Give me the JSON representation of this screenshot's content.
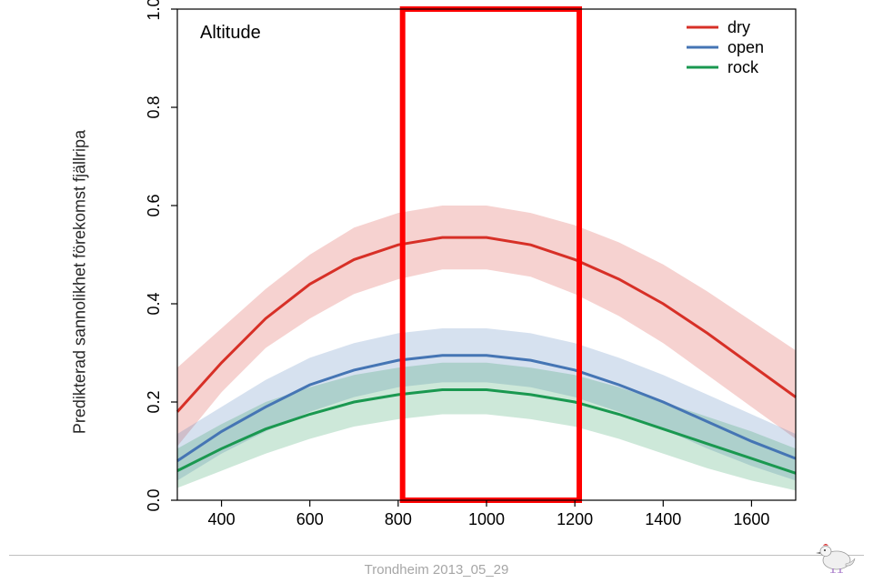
{
  "chart": {
    "type": "line",
    "title_inside": "Altitude",
    "title_fontsize": 20,
    "title_color": "#000000",
    "background_color": "#ffffff",
    "plot_border_color": "#000000",
    "axis_text_color": "#000000",
    "tick_fontsize": 18,
    "xlim": [
      300,
      1700
    ],
    "xticks": [
      400,
      600,
      800,
      1000,
      1200,
      1400,
      1600
    ],
    "ylim": [
      0.0,
      1.0
    ],
    "yticks": [
      0.0,
      0.2,
      0.4,
      0.6,
      0.8,
      1.0
    ],
    "y_tick_labels": [
      "0.0",
      "0.2",
      "0.4",
      "0.6",
      "0.8",
      "1.0"
    ],
    "series": [
      {
        "name": "dry",
        "color": "#d73027",
        "ribbon_color": "#d73027",
        "ribbon_opacity": 0.22,
        "line_width": 3,
        "x": [
          300,
          400,
          500,
          600,
          700,
          800,
          900,
          1000,
          1100,
          1200,
          1300,
          1400,
          1500,
          1600,
          1700
        ],
        "y": [
          0.18,
          0.28,
          0.37,
          0.44,
          0.49,
          0.52,
          0.535,
          0.535,
          0.52,
          0.49,
          0.45,
          0.4,
          0.34,
          0.275,
          0.21
        ],
        "lo": [
          0.11,
          0.22,
          0.31,
          0.37,
          0.42,
          0.45,
          0.47,
          0.47,
          0.455,
          0.42,
          0.375,
          0.32,
          0.255,
          0.19,
          0.125
        ],
        "hi": [
          0.27,
          0.35,
          0.43,
          0.5,
          0.555,
          0.585,
          0.6,
          0.6,
          0.585,
          0.56,
          0.525,
          0.48,
          0.425,
          0.365,
          0.305
        ]
      },
      {
        "name": "open",
        "color": "#4575b4",
        "ribbon_color": "#4575b4",
        "ribbon_opacity": 0.22,
        "line_width": 3,
        "x": [
          300,
          400,
          500,
          600,
          700,
          800,
          900,
          1000,
          1100,
          1200,
          1300,
          1400,
          1500,
          1600,
          1700
        ],
        "y": [
          0.08,
          0.14,
          0.19,
          0.235,
          0.265,
          0.285,
          0.295,
          0.295,
          0.285,
          0.265,
          0.235,
          0.2,
          0.16,
          0.12,
          0.085
        ],
        "lo": [
          0.04,
          0.095,
          0.14,
          0.18,
          0.21,
          0.23,
          0.24,
          0.24,
          0.23,
          0.21,
          0.18,
          0.145,
          0.105,
          0.07,
          0.04
        ],
        "hi": [
          0.135,
          0.19,
          0.245,
          0.29,
          0.32,
          0.34,
          0.35,
          0.35,
          0.34,
          0.32,
          0.29,
          0.255,
          0.215,
          0.175,
          0.135
        ]
      },
      {
        "name": "rock",
        "color": "#1a9850",
        "ribbon_color": "#1a9850",
        "ribbon_opacity": 0.22,
        "line_width": 3,
        "x": [
          300,
          400,
          500,
          600,
          700,
          800,
          900,
          1000,
          1100,
          1200,
          1300,
          1400,
          1500,
          1600,
          1700
        ],
        "y": [
          0.06,
          0.105,
          0.145,
          0.175,
          0.2,
          0.215,
          0.225,
          0.225,
          0.215,
          0.2,
          0.175,
          0.145,
          0.115,
          0.085,
          0.055
        ],
        "lo": [
          0.025,
          0.06,
          0.095,
          0.125,
          0.15,
          0.165,
          0.175,
          0.175,
          0.165,
          0.15,
          0.125,
          0.095,
          0.065,
          0.04,
          0.02
        ],
        "hi": [
          0.105,
          0.155,
          0.2,
          0.23,
          0.255,
          0.27,
          0.28,
          0.28,
          0.27,
          0.255,
          0.23,
          0.2,
          0.17,
          0.14,
          0.105
        ]
      }
    ],
    "legend": {
      "position": "top-right",
      "fontsize": 18,
      "text_color": "#000000",
      "line_length": 35
    },
    "highlight_box": {
      "xmin": 810,
      "xmax": 1210,
      "ymin": 0.0,
      "ymax": 1.0,
      "stroke": "#ff0000",
      "stroke_width": 6
    }
  },
  "yaxis_title": "Predikterad sannolikhet förekomst fjällripa",
  "footer_text": "Trondheim 2013_05_29",
  "bird_icon": {
    "body_color": "#f0f0f0",
    "outline_color": "#888888",
    "comb_color": "#d62728",
    "feet_color": "#a77bca"
  }
}
